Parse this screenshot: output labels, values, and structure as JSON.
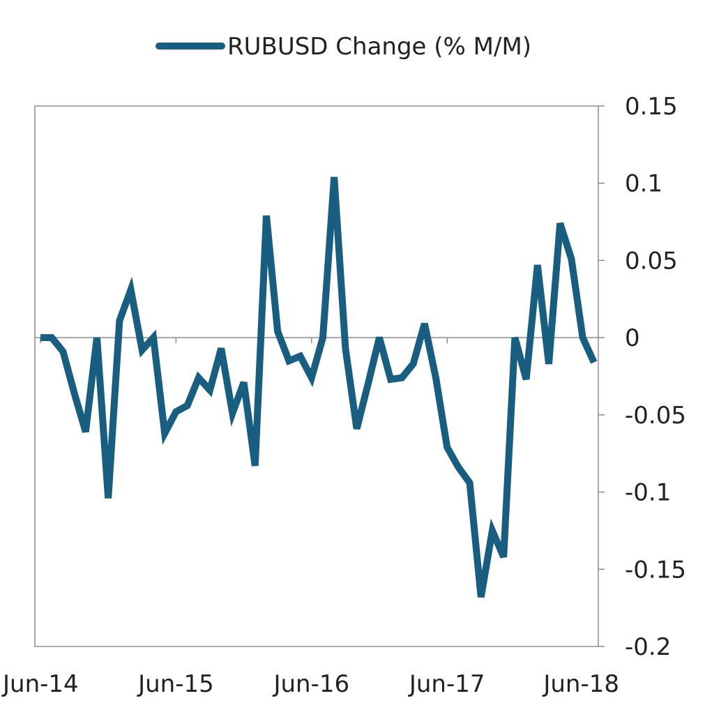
{
  "chart_data": {
    "type": "line",
    "title": "",
    "xlabel": "",
    "ylabel": "",
    "legend": {
      "position": "top-center"
    },
    "grid": false,
    "ylim": [
      -0.2,
      0.15
    ],
    "yticks": [
      0.15,
      0.1,
      0.05,
      0,
      -0.05,
      -0.1,
      -0.15,
      -0.2
    ],
    "ytick_labels": [
      "0.15",
      "0.1",
      "0.05",
      "0",
      "-0.05",
      "-0.1",
      "-0.15",
      "-0.2"
    ],
    "xticks": [
      {
        "label": "Jun-14",
        "index": 0
      },
      {
        "label": "Jun-15",
        "index": 12
      },
      {
        "label": "Jun-16",
        "index": 24
      },
      {
        "label": "Jun-17",
        "index": 36
      },
      {
        "label": "Jun-18",
        "index": 48
      }
    ],
    "series": [
      {
        "name": "RUBUSD Change (% M/M)",
        "color": "#185E80",
        "values": [
          0,
          0,
          -0.009,
          -0.036,
          -0.061,
          0,
          -0.104,
          0.011,
          0.031,
          -0.008,
          0,
          -0.062,
          -0.048,
          -0.044,
          -0.026,
          -0.034,
          -0.007,
          -0.049,
          -0.029,
          -0.083,
          0.079,
          0.004,
          -0.015,
          -0.012,
          -0.026,
          0,
          0.104,
          -0.007,
          -0.059,
          -0.03,
          0,
          -0.027,
          -0.026,
          -0.017,
          0.009,
          -0.026,
          -0.071,
          -0.084,
          -0.094,
          -0.168,
          -0.125,
          -0.142,
          0,
          -0.027,
          0.047,
          -0.017,
          0.074,
          0.051,
          0,
          -0.016
        ]
      }
    ]
  }
}
